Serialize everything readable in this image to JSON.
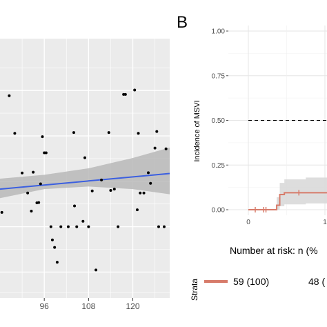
{
  "panel_b_letter": "B",
  "colors": {
    "panel_bg": "#ebebeb",
    "grid": "#ffffff",
    "fit_line": "#3b5fe0",
    "ci_band": "#b8b8b8",
    "km_line": "#d77b6a",
    "km_ci": "#d9d9d9",
    "point": "#000000"
  },
  "chart_data": [
    {
      "type": "scatter",
      "title": "",
      "xlabel": "",
      "ylabel": "",
      "xlim": [
        84,
        130
      ],
      "ylim": [
        0,
        100
      ],
      "x_ticks": [
        "96",
        "108",
        "120"
      ],
      "x_tick_values": [
        96,
        108,
        120
      ],
      "grid": true,
      "points": [
        {
          "x": 84.5,
          "y": 33.0
        },
        {
          "x": 86.5,
          "y": 78.0
        },
        {
          "x": 88.0,
          "y": 63.5
        },
        {
          "x": 90.0,
          "y": 48.2
        },
        {
          "x": 91.5,
          "y": 40.5
        },
        {
          "x": 92.5,
          "y": 33.5
        },
        {
          "x": 93.0,
          "y": 48.5
        },
        {
          "x": 94.0,
          "y": 36.7
        },
        {
          "x": 94.5,
          "y": 36.8
        },
        {
          "x": 95.0,
          "y": 44.0
        },
        {
          "x": 95.5,
          "y": 62.2
        },
        {
          "x": 96.0,
          "y": 56.0
        },
        {
          "x": 96.5,
          "y": 56.0
        },
        {
          "x": 97.8,
          "y": 27.5
        },
        {
          "x": 98.2,
          "y": 22.4
        },
        {
          "x": 98.8,
          "y": 19.5
        },
        {
          "x": 99.5,
          "y": 13.8
        },
        {
          "x": 100.5,
          "y": 27.5
        },
        {
          "x": 102.5,
          "y": 27.5
        },
        {
          "x": 104.0,
          "y": 63.8
        },
        {
          "x": 104.2,
          "y": 35.5
        },
        {
          "x": 104.8,
          "y": 27.5
        },
        {
          "x": 106.5,
          "y": 29.6
        },
        {
          "x": 107.0,
          "y": 54.1
        },
        {
          "x": 108.0,
          "y": 27.5
        },
        {
          "x": 109.0,
          "y": 41.3
        },
        {
          "x": 110.0,
          "y": 10.8
        },
        {
          "x": 111.5,
          "y": 45.5
        },
        {
          "x": 113.5,
          "y": 63.8
        },
        {
          "x": 114.0,
          "y": 41.5
        },
        {
          "x": 115.0,
          "y": 42.0
        },
        {
          "x": 116.0,
          "y": 27.5
        },
        {
          "x": 117.5,
          "y": 78.5
        },
        {
          "x": 118.0,
          "y": 78.5
        },
        {
          "x": 120.5,
          "y": 80.2
        },
        {
          "x": 121.2,
          "y": 34.0
        },
        {
          "x": 121.5,
          "y": 63.5
        },
        {
          "x": 122.0,
          "y": 40.5
        },
        {
          "x": 123.0,
          "y": 40.5
        },
        {
          "x": 124.2,
          "y": 48.3
        },
        {
          "x": 124.8,
          "y": 44.2
        },
        {
          "x": 126.0,
          "y": 57.8
        },
        {
          "x": 126.5,
          "y": 64.2
        },
        {
          "x": 127.0,
          "y": 27.5
        },
        {
          "x": 128.5,
          "y": 27.5
        },
        {
          "x": 129.0,
          "y": 57.5
        }
      ],
      "fit_line": {
        "x": [
          84,
          130
        ],
        "y": [
          42,
          48
        ]
      },
      "ci_band": {
        "x": [
          84,
          96,
          108,
          120,
          130
        ],
        "lower": [
          38.5,
          42.0,
          43.0,
          42.0,
          40.0
        ],
        "upper": [
          46.0,
          47.5,
          50.0,
          54.0,
          58.0
        ]
      }
    },
    {
      "type": "line",
      "subtype": "cumulative-incidence",
      "title": "",
      "xlabel": "",
      "ylabel": "Incidence of MSVI",
      "xlim": [
        0,
        1.75
      ],
      "ylim": [
        0,
        1
      ],
      "y_ticks": [
        "0.00",
        "0.25",
        "0.50",
        "0.75",
        "1.00"
      ],
      "y_tick_values": [
        0,
        0.25,
        0.5,
        0.75,
        1.0
      ],
      "x_ticks": [
        "0",
        "1"
      ],
      "x_tick_values": [
        0,
        1
      ],
      "grid": true,
      "reference_line": {
        "y": 0.5,
        "style": "dashed"
      },
      "series": [
        {
          "steps": [
            {
              "x": 0.0,
              "y": 0.0
            },
            {
              "x": 0.37,
              "y": 0.0
            },
            {
              "x": 0.37,
              "y": 0.025
            },
            {
              "x": 0.41,
              "y": 0.025
            },
            {
              "x": 0.41,
              "y": 0.085
            },
            {
              "x": 0.47,
              "y": 0.085
            },
            {
              "x": 0.47,
              "y": 0.095
            },
            {
              "x": 0.75,
              "y": 0.095
            }
          ],
          "censor_x": [
            0.09,
            0.2,
            0.23,
            0.66
          ],
          "ci_band": {
            "x": [
              0.37,
              0.41,
              0.47,
              0.75
            ],
            "lower": [
              0.0,
              0.02,
              0.03,
              0.035
            ],
            "upper": [
              0.07,
              0.15,
              0.17,
              0.18
            ]
          }
        }
      ]
    }
  ],
  "risk_table": {
    "title": "Number at risk: n (%",
    "strata_label": "Strata",
    "values": [
      "59 (100)",
      "48 ("
    ]
  }
}
